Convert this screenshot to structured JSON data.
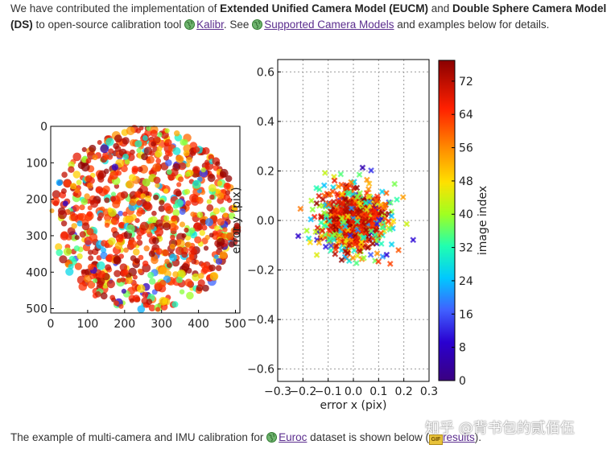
{
  "intro": {
    "t1": "We have contributed the implementation of ",
    "b1": "Extended Unified Camera Model (EUCM)",
    "t2": " and ",
    "b2": "Double Sphere Camera Model",
    "b3": "(DS)",
    "t3": " to open-source calibration tool ",
    "link1": "Kalibr",
    "t4": ". See ",
    "link2": "Supported Camera Models",
    "t5": " and examples below for details."
  },
  "outro": {
    "t1": "The example of multi-camera and IMU calibration for ",
    "link1": "Euroc",
    "t2": " dataset is shown below (",
    "gif_label": "GIF",
    "link2": "results",
    "t3": ")."
  },
  "watermark": "知乎 @背书包的贰佰伍",
  "colors": {
    "link": "#5b2d8e",
    "globe": "#3a8a3a"
  },
  "chart_data": [
    {
      "type": "scatter",
      "description_role": "detected corner locations in image, colored by image index",
      "x_ticks": [
        "0",
        "100",
        "200",
        "300",
        "400",
        "500"
      ],
      "y_ticks": [
        "0",
        "100",
        "200",
        "300",
        "400",
        "500"
      ],
      "xlim": [
        0,
        512
      ],
      "ylim": [
        512,
        0
      ],
      "grid": false
    },
    {
      "type": "scatter",
      "xlabel": "error x (pix)",
      "ylabel": "error y (pix)",
      "x_ticks": [
        "−0.3",
        "−0.2",
        "−0.1",
        "0.0",
        "0.1",
        "0.2",
        "0.3"
      ],
      "y_ticks": [
        "0.6",
        "0.4",
        "0.2",
        "0.0",
        "−0.2",
        "−0.4",
        "−0.6"
      ],
      "xlim": [
        -0.3,
        0.3
      ],
      "ylim": [
        -0.65,
        0.65
      ],
      "grid": true,
      "marker": "x"
    },
    {
      "type": "colorbar",
      "label": "image index",
      "ticks": [
        "72",
        "64",
        "56",
        "48",
        "40",
        "32",
        "24",
        "16",
        "8",
        "0"
      ],
      "range": [
        0,
        77
      ],
      "colormap": "jet"
    }
  ]
}
